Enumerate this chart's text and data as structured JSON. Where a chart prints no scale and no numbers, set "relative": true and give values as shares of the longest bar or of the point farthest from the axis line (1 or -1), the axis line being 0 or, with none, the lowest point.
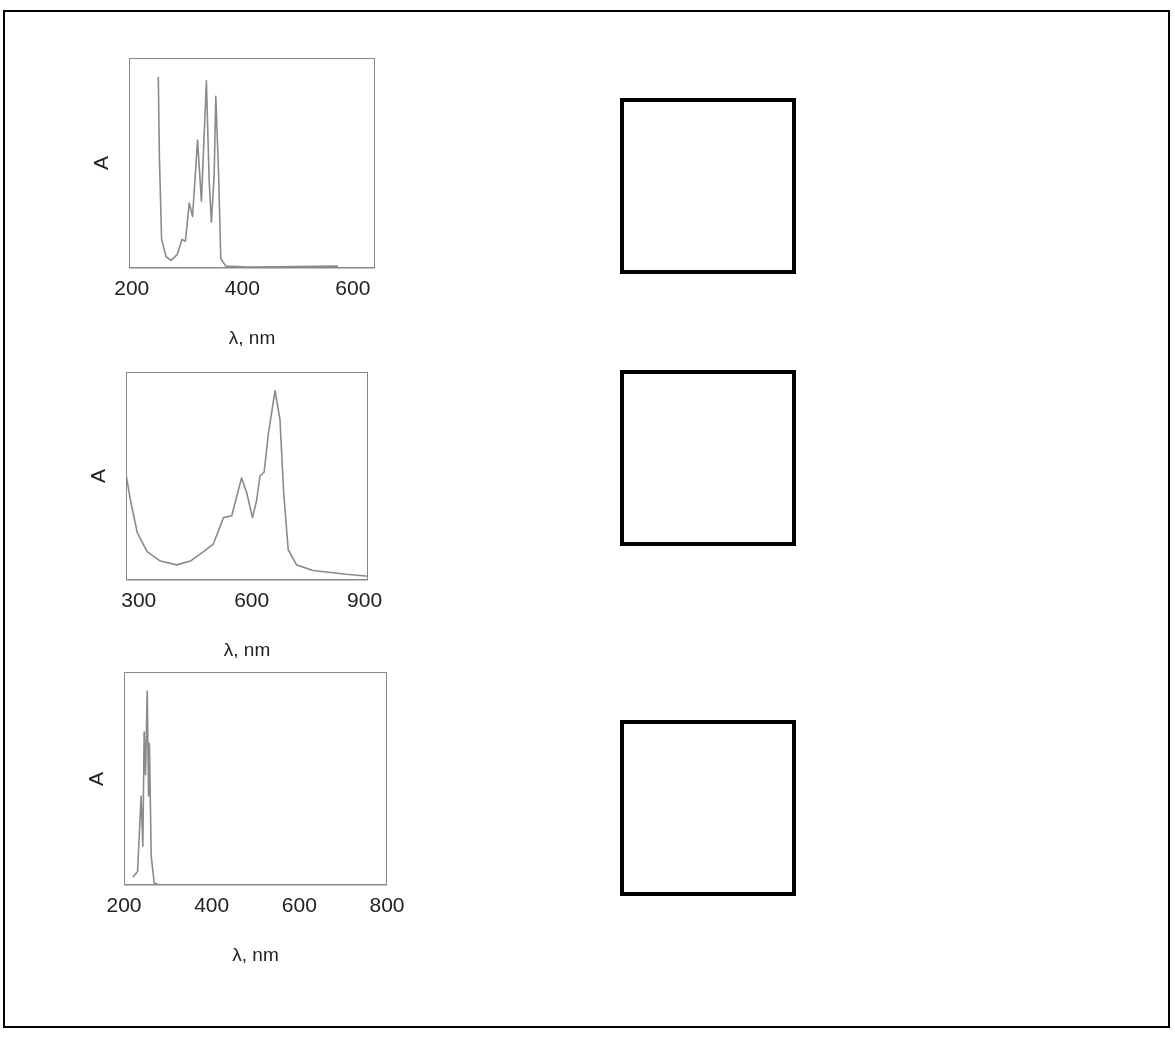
{
  "chart_data": [
    {
      "type": "line",
      "relative": true,
      "xlabel": "λ, nm",
      "ylabel": "A",
      "xlim": [
        195,
        640
      ],
      "xticks": [
        200,
        400,
        600
      ],
      "color": "#8a8a8a",
      "marker": "none",
      "x": [
        248,
        250,
        254,
        262,
        271,
        282,
        291,
        297,
        304,
        310,
        319,
        326,
        335,
        340,
        344,
        349,
        352,
        357,
        361,
        370,
        409,
        573
      ],
      "values": [
        1.0,
        0.58,
        0.15,
        0.06,
        0.04,
        0.07,
        0.15,
        0.14,
        0.34,
        0.27,
        0.67,
        0.35,
        0.98,
        0.46,
        0.24,
        0.48,
        0.9,
        0.5,
        0.05,
        0.01,
        0.005,
        0.01
      ]
    },
    {
      "type": "line",
      "relative": true,
      "xlabel": "λ, nm",
      "ylabel": "A",
      "xlim": [
        266,
        909
      ],
      "xticks": [
        300,
        600,
        900
      ],
      "color": "#8a8a8a",
      "marker": "none",
      "x": [
        266,
        278,
        296,
        322,
        357,
        401,
        437,
        472,
        498,
        525,
        547,
        560,
        573,
        587,
        602,
        613,
        622,
        633,
        644,
        662,
        675,
        685,
        697,
        719,
        763,
        851,
        909
      ],
      "values": [
        0.56,
        0.42,
        0.25,
        0.15,
        0.1,
        0.08,
        0.1,
        0.15,
        0.19,
        0.33,
        0.34,
        0.44,
        0.54,
        0.46,
        0.33,
        0.42,
        0.55,
        0.57,
        0.77,
        1.0,
        0.85,
        0.46,
        0.16,
        0.08,
        0.05,
        0.03,
        0.02
      ]
    },
    {
      "type": "line",
      "relative": true,
      "xlabel": "λ, nm",
      "ylabel": "A",
      "xlim": [
        200,
        800
      ],
      "xticks": [
        200,
        400,
        600,
        800
      ],
      "color": "#8a8a8a",
      "marker": "none",
      "x": [
        220,
        231,
        239,
        243,
        246,
        249,
        253,
        256,
        258,
        262,
        269,
        281,
        721
      ],
      "values": [
        0.04,
        0.07,
        0.46,
        0.2,
        0.79,
        0.57,
        1.0,
        0.46,
        0.73,
        0.15,
        0.01,
        0,
        0
      ]
    }
  ]
}
